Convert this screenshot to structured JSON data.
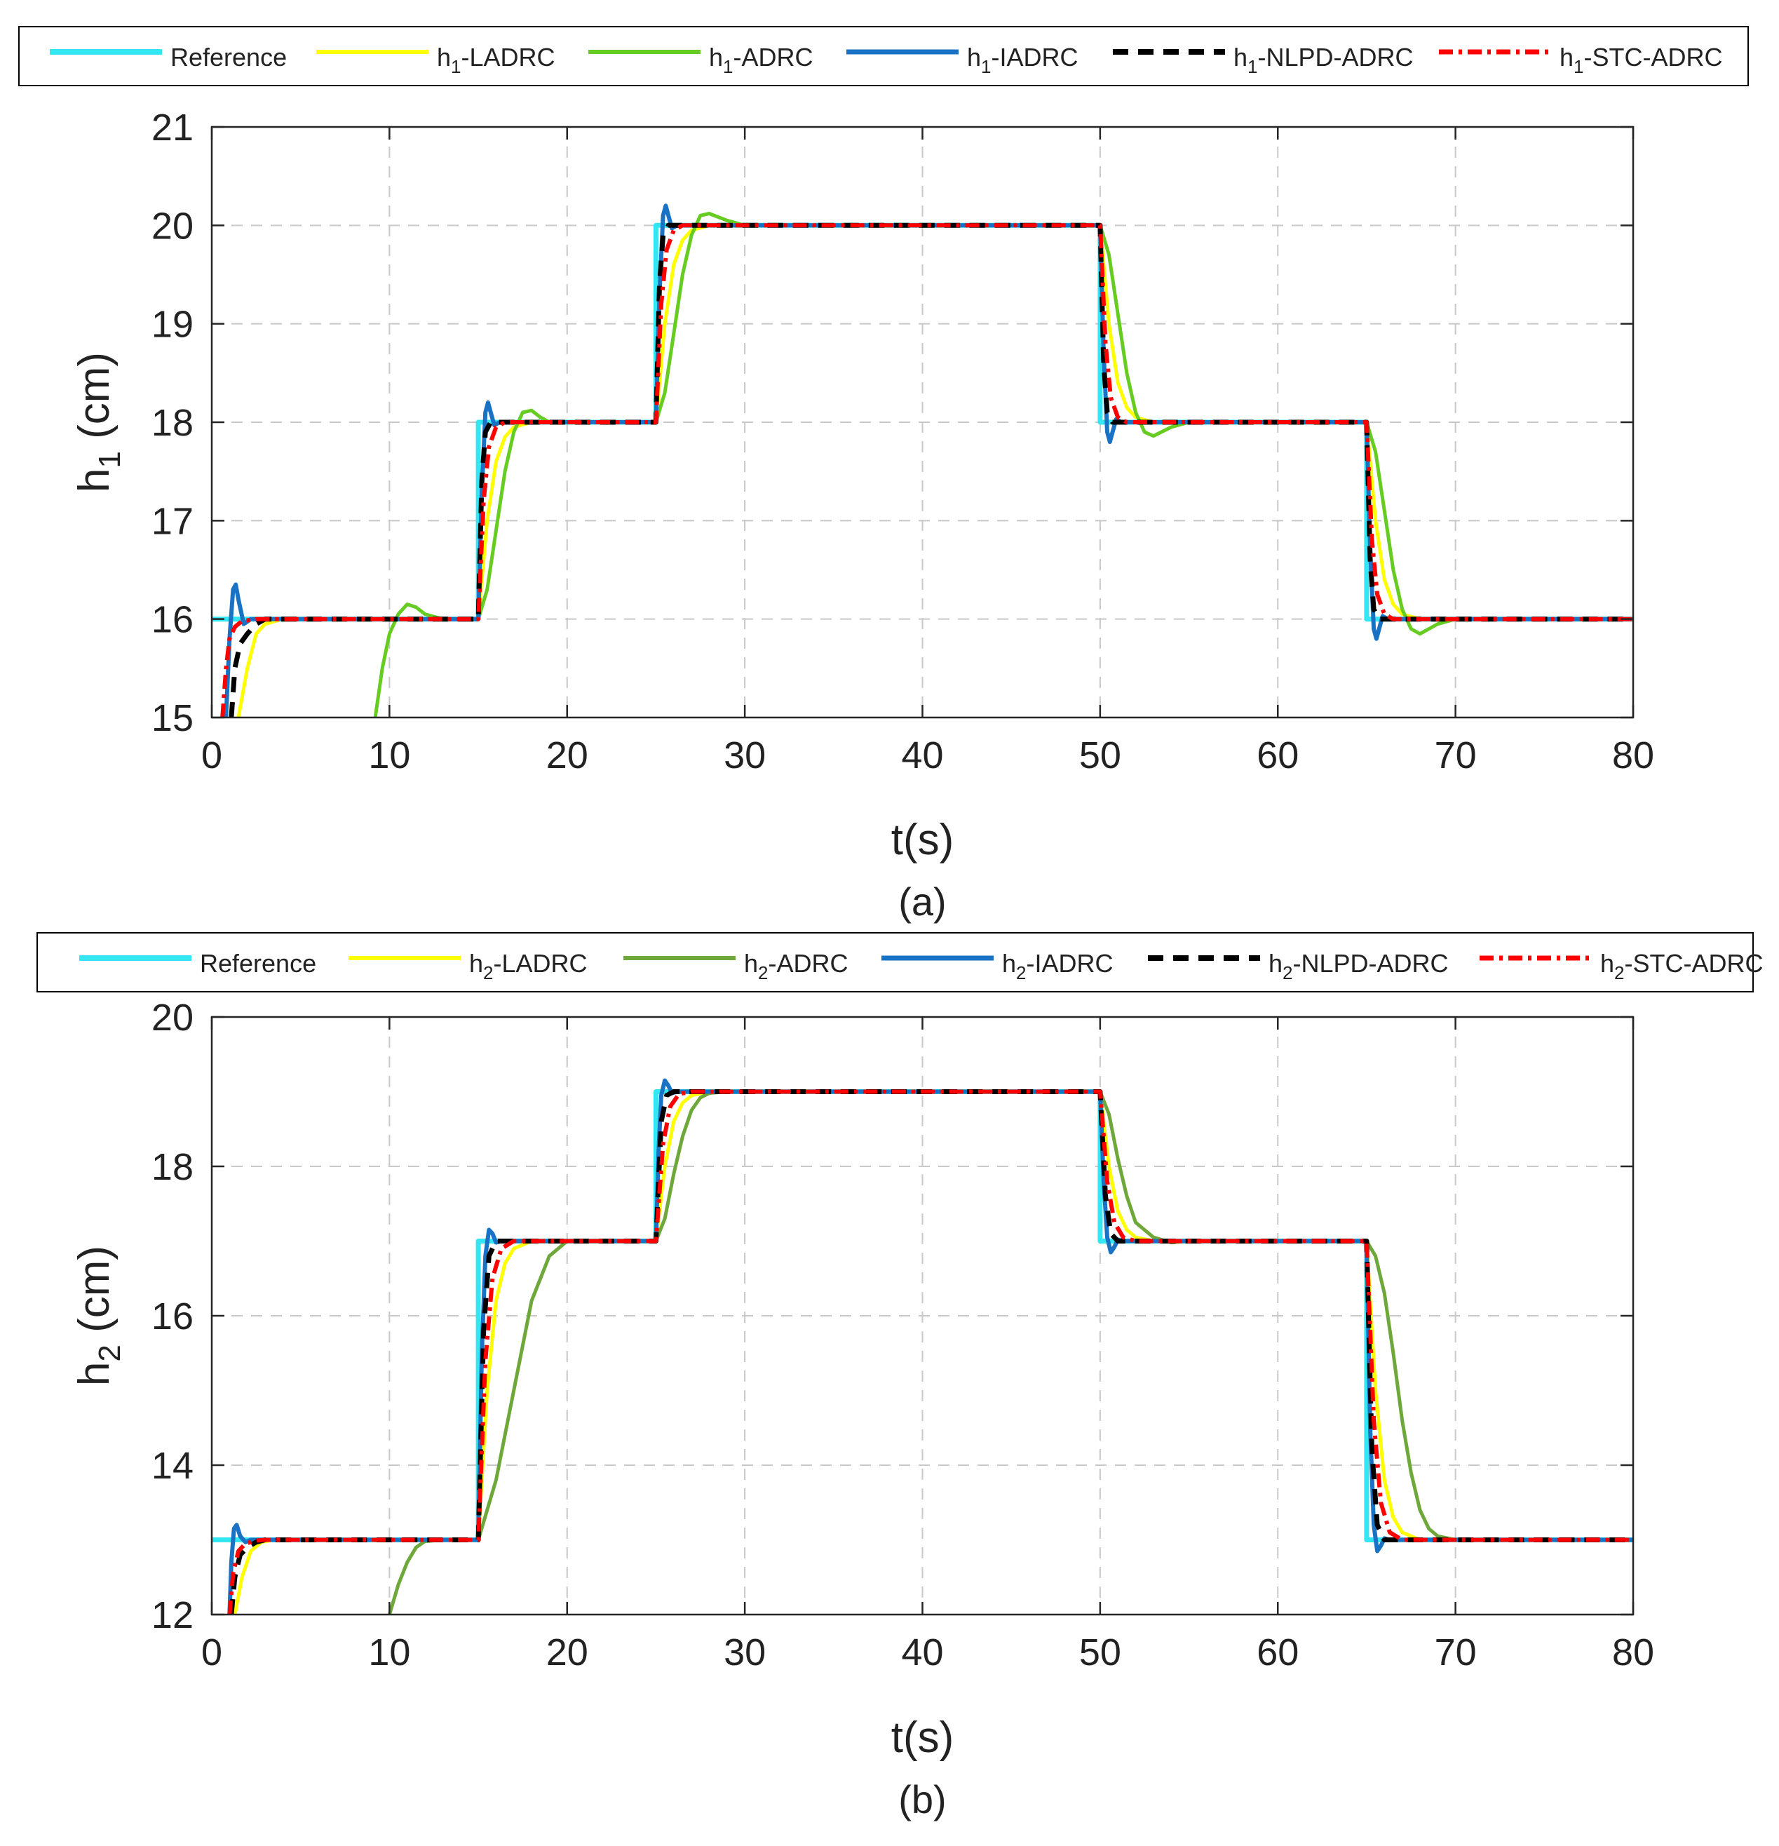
{
  "colors": {
    "reference": "#33e6f2",
    "ladrc": "#ffff00",
    "adrc_a": "#66cc22",
    "adrc_b": "#6fa83a",
    "iadrc": "#1a72c4",
    "nlpd": "#000000",
    "stc": "#ff0000",
    "grid": "#c8c8c8"
  },
  "chart_data": [
    {
      "type": "line",
      "panel_label": "(a)",
      "xlabel": "t(s)",
      "ylabel": "h",
      "ylabel_sub": "1",
      "ylabel_unit": " (cm)",
      "xlim": [
        0,
        80
      ],
      "ylim": [
        15,
        21
      ],
      "xticks": [
        0,
        10,
        20,
        30,
        40,
        50,
        60,
        70,
        80
      ],
      "yticks": [
        15,
        16,
        17,
        18,
        19,
        20,
        21
      ],
      "grid": true,
      "legend_position": "top",
      "legend": [
        {
          "key": "reference",
          "prefix": "Reference",
          "sub": "",
          "suffix": ""
        },
        {
          "key": "ladrc",
          "prefix": "h",
          "sub": "1",
          "suffix": "-LADRC"
        },
        {
          "key": "adrc",
          "prefix": "h",
          "sub": "1",
          "suffix": "-ADRC"
        },
        {
          "key": "iadrc",
          "prefix": "h",
          "sub": "1",
          "suffix": "-IADRC"
        },
        {
          "key": "nlpd",
          "prefix": "h",
          "sub": "1",
          "suffix": "-NLPD-ADRC"
        },
        {
          "key": "stc",
          "prefix": "h",
          "sub": "1",
          "suffix": "-STC-ADRC"
        }
      ],
      "series": [
        {
          "name": "Reference",
          "key": "reference",
          "x": [
            0,
            15,
            15,
            25,
            25,
            50,
            50,
            65,
            65,
            80
          ],
          "y": [
            16,
            16,
            18,
            18,
            20,
            20,
            18,
            18,
            16,
            16
          ]
        },
        {
          "name": "h1-LADRC",
          "key": "ladrc",
          "x": [
            1.5,
            2.0,
            2.5,
            3.0,
            4.0,
            15.0,
            15.5,
            16.0,
            16.5,
            17.0,
            18.0,
            25.0,
            25.5,
            26.0,
            26.5,
            27.0,
            28.0,
            50.0,
            50.5,
            51.0,
            51.5,
            52.0,
            53.0,
            65.0,
            65.5,
            66.0,
            66.5,
            67.0,
            68.0,
            80.0
          ],
          "y": [
            15.0,
            15.5,
            15.85,
            15.95,
            16.0,
            16.0,
            17.0,
            17.6,
            17.85,
            17.95,
            18.0,
            18.0,
            19.0,
            19.6,
            19.85,
            19.95,
            20.0,
            20.0,
            19.0,
            18.4,
            18.15,
            18.05,
            18.0,
            18.0,
            17.0,
            16.4,
            16.15,
            16.05,
            16.0,
            16.0
          ]
        },
        {
          "name": "h1-ADRC",
          "key": "adrc",
          "x": [
            9.2,
            9.6,
            10.0,
            10.5,
            11.0,
            11.5,
            12.0,
            13.0,
            15.0,
            15.5,
            16.0,
            16.5,
            17.0,
            17.5,
            18.0,
            18.5,
            19.0,
            20.0,
            25.0,
            25.5,
            26.0,
            26.5,
            27.0,
            27.5,
            28.0,
            29.0,
            30.0,
            50.0,
            50.5,
            51.0,
            51.5,
            52.0,
            52.5,
            53.0,
            54.0,
            55.0,
            65.0,
            65.5,
            66.0,
            66.5,
            67.0,
            67.5,
            68.0,
            69.0,
            70.0,
            80.0
          ],
          "y": [
            15.0,
            15.5,
            15.85,
            16.05,
            16.15,
            16.12,
            16.05,
            16.0,
            16.0,
            16.3,
            16.9,
            17.5,
            17.9,
            18.1,
            18.12,
            18.05,
            18.0,
            18.0,
            18.0,
            18.3,
            18.9,
            19.5,
            19.9,
            20.1,
            20.12,
            20.05,
            20.0,
            20.0,
            19.7,
            19.1,
            18.5,
            18.1,
            17.9,
            17.86,
            17.95,
            18.0,
            18.0,
            17.7,
            17.1,
            16.5,
            16.1,
            15.9,
            15.85,
            15.95,
            16.0,
            16.0
          ]
        },
        {
          "name": "h1-IADRC",
          "key": "iadrc",
          "x": [
            0.8,
            1.0,
            1.2,
            1.35,
            1.5,
            1.8,
            2.2,
            15.0,
            15.2,
            15.4,
            15.55,
            15.7,
            15.9,
            16.2,
            25.0,
            25.2,
            25.4,
            25.55,
            25.7,
            25.9,
            26.2,
            50.0,
            50.2,
            50.4,
            50.55,
            50.7,
            50.9,
            51.2,
            65.0,
            65.2,
            65.4,
            65.55,
            65.7,
            65.9,
            66.2,
            80.0
          ],
          "y": [
            15.0,
            15.8,
            16.3,
            16.35,
            16.2,
            15.95,
            16.0,
            16.0,
            17.3,
            18.1,
            18.2,
            18.1,
            17.97,
            18.0,
            18.0,
            19.3,
            20.1,
            20.2,
            20.1,
            19.97,
            20.0,
            20.0,
            18.7,
            17.9,
            17.8,
            17.9,
            18.03,
            18.0,
            18.0,
            16.7,
            15.9,
            15.8,
            15.9,
            16.03,
            16.0,
            16.0
          ]
        },
        {
          "name": "h1-NLPD-ADRC",
          "key": "nlpd",
          "x": [
            1.1,
            1.3,
            1.6,
            2.0,
            2.5,
            3.0,
            15.0,
            15.2,
            15.4,
            15.7,
            16.0,
            25.0,
            25.2,
            25.4,
            25.7,
            26.0,
            50.0,
            50.2,
            50.4,
            50.7,
            51.0,
            65.0,
            65.2,
            65.4,
            65.7,
            66.0,
            80.0
          ],
          "y": [
            15.0,
            15.5,
            15.75,
            15.85,
            15.95,
            16.0,
            16.0,
            17.4,
            17.9,
            18.0,
            18.0,
            18.0,
            19.4,
            19.9,
            20.0,
            20.0,
            20.0,
            18.6,
            18.1,
            18.0,
            18.0,
            18.0,
            16.6,
            16.1,
            16.0,
            16.0,
            16.0
          ]
        },
        {
          "name": "h1-STC-ADRC",
          "key": "stc",
          "x": [
            0.6,
            0.8,
            1.0,
            1.3,
            1.7,
            2.5,
            15.0,
            15.3,
            15.6,
            16.0,
            16.5,
            25.0,
            25.3,
            25.6,
            26.0,
            26.5,
            50.0,
            50.3,
            50.6,
            51.0,
            51.5,
            65.0,
            65.3,
            65.6,
            66.0,
            66.5,
            80.0
          ],
          "y": [
            15.0,
            15.5,
            15.8,
            15.92,
            15.98,
            16.0,
            16.0,
            17.2,
            17.75,
            17.95,
            18.0,
            18.0,
            19.2,
            19.75,
            19.95,
            20.0,
            20.0,
            18.8,
            18.25,
            18.05,
            18.0,
            18.0,
            16.8,
            16.25,
            16.05,
            16.0,
            16.0
          ]
        }
      ]
    },
    {
      "type": "line",
      "panel_label": "(b)",
      "xlabel": "t(s)",
      "ylabel": "h",
      "ylabel_sub": "2",
      "ylabel_unit": " (cm)",
      "xlim": [
        0,
        80
      ],
      "ylim": [
        12,
        20
      ],
      "xticks": [
        0,
        10,
        20,
        30,
        40,
        50,
        60,
        70,
        80
      ],
      "yticks": [
        12,
        14,
        16,
        18,
        20
      ],
      "grid": true,
      "legend_position": "top",
      "legend": [
        {
          "key": "reference",
          "prefix": "Reference",
          "sub": "",
          "suffix": ""
        },
        {
          "key": "ladrc",
          "prefix": "h",
          "sub": "2",
          "suffix": "-LADRC"
        },
        {
          "key": "adrc",
          "prefix": "h",
          "sub": "2",
          "suffix": "-ADRC"
        },
        {
          "key": "iadrc",
          "prefix": "h",
          "sub": "2",
          "suffix": "-IADRC"
        },
        {
          "key": "nlpd",
          "prefix": "h",
          "sub": "2",
          "suffix": "-NLPD-ADRC"
        },
        {
          "key": "stc",
          "prefix": "h",
          "sub": "2",
          "suffix": "-STC-ADRC"
        }
      ],
      "series": [
        {
          "name": "Reference",
          "key": "reference",
          "x": [
            0,
            15,
            15,
            25,
            25,
            50,
            50,
            65,
            65,
            80
          ],
          "y": [
            13,
            13,
            17,
            17,
            19,
            19,
            17,
            17,
            13,
            13
          ]
        },
        {
          "name": "h2-LADRC",
          "key": "ladrc",
          "x": [
            1.3,
            1.7,
            2.2,
            2.8,
            3.5,
            15.0,
            15.5,
            16.0,
            16.5,
            17.0,
            18.0,
            25.0,
            25.5,
            26.0,
            26.5,
            27.0,
            28.0,
            50.0,
            50.5,
            51.0,
            51.5,
            52.0,
            53.0,
            65.0,
            65.5,
            66.0,
            66.5,
            67.0,
            68.0,
            80.0
          ],
          "y": [
            12.0,
            12.5,
            12.85,
            12.97,
            13.0,
            13.0,
            15.0,
            16.2,
            16.7,
            16.9,
            17.0,
            17.0,
            18.0,
            18.6,
            18.85,
            18.95,
            19.0,
            19.0,
            18.0,
            17.4,
            17.15,
            17.05,
            17.0,
            17.0,
            15.0,
            13.8,
            13.3,
            13.1,
            13.0,
            13.0
          ]
        },
        {
          "name": "h2-ADRC",
          "key": "adrc",
          "x": [
            10.0,
            10.5,
            11.0,
            11.5,
            12.0,
            13.0,
            15.0,
            16.0,
            17.0,
            18.0,
            19.0,
            20.0,
            21.0,
            25.0,
            25.5,
            26.0,
            26.5,
            27.0,
            27.5,
            28.0,
            29.0,
            50.0,
            50.5,
            51.0,
            51.5,
            52.0,
            53.0,
            54.0,
            55.0,
            65.0,
            65.5,
            66.0,
            66.5,
            67.0,
            67.5,
            68.0,
            68.5,
            69.0,
            70.0,
            80.0
          ],
          "y": [
            12.0,
            12.4,
            12.7,
            12.9,
            12.98,
            13.0,
            13.0,
            13.8,
            15.0,
            16.2,
            16.8,
            17.0,
            17.0,
            17.0,
            17.3,
            17.9,
            18.4,
            18.75,
            18.92,
            18.98,
            19.0,
            19.0,
            18.7,
            18.1,
            17.6,
            17.25,
            17.05,
            16.98,
            17.0,
            17.0,
            16.8,
            16.3,
            15.5,
            14.6,
            13.9,
            13.4,
            13.15,
            13.05,
            13.0,
            13.0
          ]
        },
        {
          "name": "h2-IADRC",
          "key": "iadrc",
          "x": [
            1.0,
            1.1,
            1.25,
            1.4,
            1.6,
            1.9,
            2.2,
            15.0,
            15.2,
            15.4,
            15.6,
            15.8,
            16.0,
            16.3,
            25.0,
            25.15,
            25.3,
            25.5,
            25.7,
            25.9,
            26.2,
            50.0,
            50.2,
            50.4,
            50.6,
            50.8,
            51.0,
            51.3,
            65.0,
            65.2,
            65.4,
            65.6,
            65.8,
            66.0,
            66.3,
            80.0
          ],
          "y": [
            12.0,
            12.7,
            13.15,
            13.2,
            13.05,
            12.97,
            13.0,
            13.0,
            15.5,
            16.8,
            17.15,
            17.1,
            16.98,
            17.0,
            17.0,
            18.2,
            18.95,
            19.15,
            19.08,
            18.98,
            19.0,
            19.0,
            17.8,
            17.05,
            16.85,
            16.92,
            17.02,
            17.0,
            17.0,
            14.5,
            13.2,
            12.85,
            12.92,
            13.02,
            13.0,
            13.0
          ]
        },
        {
          "name": "h2-NLPD-ADRC",
          "key": "nlpd",
          "x": [
            1.1,
            1.3,
            1.6,
            2.0,
            2.5,
            3.0,
            15.0,
            15.3,
            15.6,
            16.0,
            16.5,
            25.0,
            25.3,
            25.6,
            26.0,
            26.5,
            50.0,
            50.3,
            50.6,
            51.0,
            51.5,
            65.0,
            65.3,
            65.6,
            66.0,
            66.5,
            80.0
          ],
          "y": [
            12.0,
            12.5,
            12.8,
            12.9,
            12.97,
            13.0,
            13.0,
            15.8,
            16.8,
            17.0,
            17.0,
            17.0,
            18.6,
            18.95,
            19.0,
            19.0,
            19.0,
            17.6,
            17.1,
            17.0,
            17.0,
            17.0,
            14.2,
            13.2,
            13.0,
            13.0,
            13.0
          ]
        },
        {
          "name": "h2-STC-ADRC",
          "key": "stc",
          "x": [
            1.0,
            1.2,
            1.5,
            1.9,
            2.5,
            3.0,
            15.0,
            15.4,
            15.8,
            16.3,
            17.0,
            25.0,
            25.4,
            25.8,
            26.3,
            27.0,
            50.0,
            50.4,
            50.8,
            51.3,
            52.0,
            65.0,
            65.4,
            65.8,
            66.3,
            67.0,
            80.0
          ],
          "y": [
            12.0,
            12.55,
            12.85,
            12.95,
            12.99,
            13.0,
            13.0,
            15.4,
            16.5,
            16.9,
            17.0,
            17.0,
            18.3,
            18.8,
            18.97,
            19.0,
            19.0,
            17.8,
            17.25,
            17.05,
            17.0,
            17.0,
            14.6,
            13.5,
            13.1,
            13.0,
            13.0
          ]
        }
      ]
    }
  ]
}
